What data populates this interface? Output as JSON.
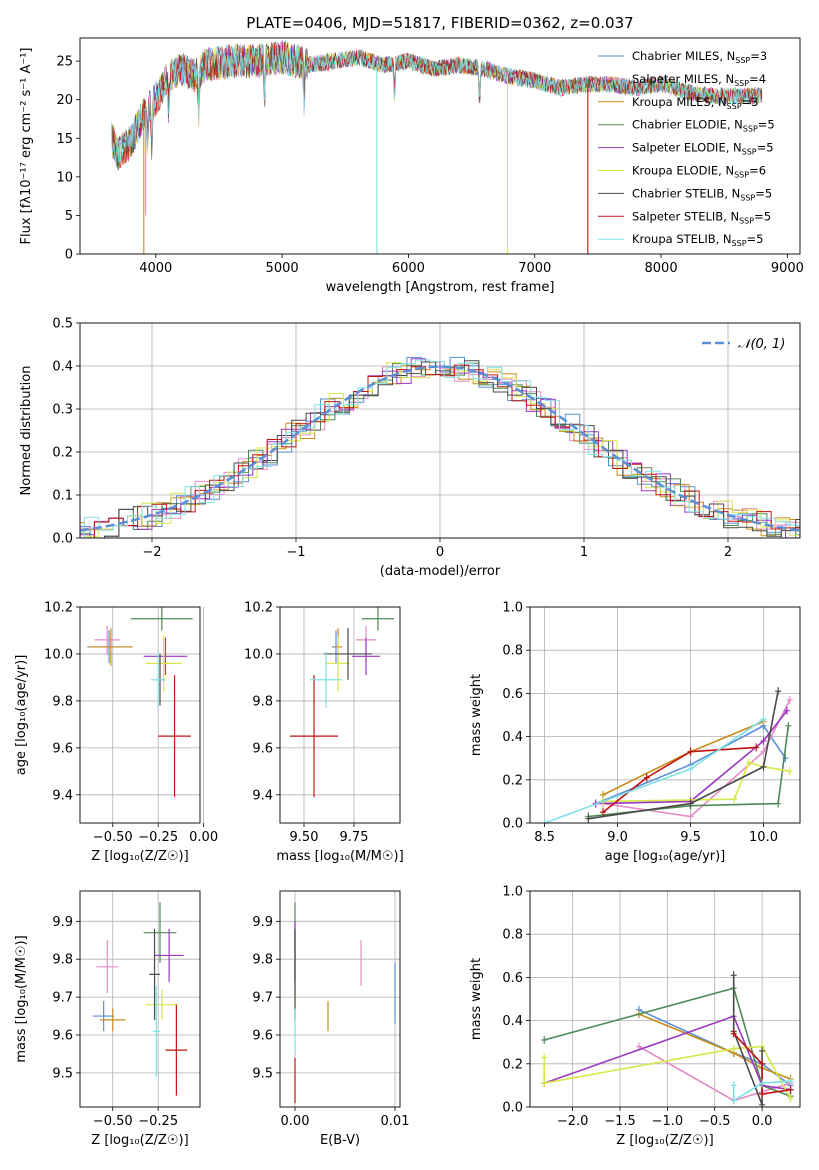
{
  "figure_title": "PLATE=0406, MJD=51817, FIBERID=0362, z=0.037",
  "models": [
    {
      "name": "Chabrier MILES",
      "nssp": "3",
      "color": "#5b8fd6"
    },
    {
      "name": "Salpeter MILES",
      "nssp": "4",
      "color": "#e38cc8"
    },
    {
      "name": "Kroupa MILES",
      "nssp": "3",
      "color": "#c98c1a"
    },
    {
      "name": "Chabrier ELODIE",
      "nssp": "5",
      "color": "#4f8a56"
    },
    {
      "name": "Salpeter ELODIE",
      "nssp": "5",
      "color": "#9b37c0"
    },
    {
      "name": "Kroupa ELODIE",
      "nssp": "6",
      "color": "#d8e84a"
    },
    {
      "name": "Chabrier STELIB",
      "nssp": "5",
      "color": "#4a4a4a"
    },
    {
      "name": "Salpeter STELIB",
      "nssp": "5",
      "color": "#c0140f"
    },
    {
      "name": "Kroupa STELIB",
      "nssp": "5",
      "color": "#7fe0e6"
    }
  ],
  "chart_data": [
    {
      "type": "line",
      "title": "PLATE=0406, MJD=51817, FIBERID=0362, z=0.037",
      "xlabel": "wavelength [Angstrom, rest frame]",
      "ylabel": "Flux [fλ10⁻¹⁷ erg cm⁻² s⁻¹ A⁻¹]",
      "xlim": [
        3400,
        9100
      ],
      "ylim": [
        0,
        28
      ],
      "xticks": [
        "4000",
        "5000",
        "6000",
        "7000",
        "8000",
        "9000"
      ],
      "yticks": [
        "0",
        "5",
        "10",
        "15",
        "20",
        "25"
      ],
      "legend": "top-right",
      "continuum": [
        [
          3650,
          15
        ],
        [
          3700,
          13
        ],
        [
          3800,
          14.5
        ],
        [
          3900,
          18
        ],
        [
          3950,
          19
        ],
        [
          4000,
          20
        ],
        [
          4100,
          23
        ],
        [
          4200,
          24
        ],
        [
          4300,
          23
        ],
        [
          4400,
          24.5
        ],
        [
          4600,
          25
        ],
        [
          4800,
          25
        ],
        [
          5000,
          25.5
        ],
        [
          5200,
          24.5
        ],
        [
          5400,
          25
        ],
        [
          5600,
          25.5
        ],
        [
          5800,
          24.5
        ],
        [
          6000,
          25
        ],
        [
          6200,
          24
        ],
        [
          6400,
          24.5
        ],
        [
          6600,
          24
        ],
        [
          6800,
          23
        ],
        [
          7000,
          22.5
        ],
        [
          7200,
          21.5
        ],
        [
          7400,
          22
        ],
        [
          7600,
          22
        ],
        [
          7800,
          21.5
        ],
        [
          8000,
          22
        ],
        [
          8200,
          21
        ],
        [
          8400,
          20.5
        ],
        [
          8600,
          20.5
        ],
        [
          8800,
          20.5
        ]
      ],
      "lines_x": [
        3934,
        3968,
        4102,
        4340,
        4861,
        5175,
        5890,
        6563
      ],
      "spikes": [
        [
          3905,
          0,
          2
        ],
        [
          3920,
          5,
          1
        ],
        [
          5750,
          0,
          8
        ],
        [
          6785,
          0,
          5
        ],
        [
          7420,
          0,
          7
        ]
      ]
    },
    {
      "type": "histogram",
      "xlabel": "(data-model)/error",
      "ylabel": "Normed distribution",
      "xlim": [
        -2.5,
        2.5
      ],
      "ylim": [
        0,
        0.5
      ],
      "xticks": [
        "−2",
        "−1",
        "0",
        "1",
        "2"
      ],
      "yticks": [
        "0.0",
        "0.1",
        "0.2",
        "0.3",
        "0.4",
        "0.5"
      ],
      "grid": true,
      "legend": "top-right",
      "legend_label": "𝒩(0, 1)",
      "bin_width": 0.1,
      "legend_color": "#5b8fd6",
      "reference_curve": "normal(0,1)"
    },
    {
      "type": "errorbar",
      "xlabel": "Z [log₁₀(Z/Z☉)]",
      "ylabel": "age  [log₁₀(age/yr)]",
      "xlim": [
        -0.68,
        -0.02
      ],
      "ylim": [
        9.28,
        10.2
      ],
      "xticks": [
        "−0.50",
        "−0.25",
        "0.00"
      ],
      "yticks": [
        "9.4",
        "9.6",
        "9.8",
        "10.0",
        "10.2"
      ],
      "points": [
        {
          "x": -0.52,
          "xerr": 0.12,
          "y": 10.03,
          "yerr": 0.07
        },
        {
          "x": -0.53,
          "xerr": 0.07,
          "y": 10.06,
          "yerr": 0.06
        },
        {
          "x": -0.51,
          "xerr": 0.12,
          "y": 10.03,
          "yerr": 0.08
        },
        {
          "x": -0.23,
          "xerr": 0.17,
          "y": 10.15,
          "yerr": 0.05
        },
        {
          "x": -0.21,
          "xerr": 0.12,
          "y": 9.99,
          "yerr": 0.08
        },
        {
          "x": -0.22,
          "xerr": 0.1,
          "y": 9.96,
          "yerr": 0.12
        },
        {
          "x": -0.24,
          "xerr": 0.02,
          "y": 9.89,
          "yerr": 0.11
        },
        {
          "x": -0.16,
          "xerr": 0.09,
          "y": 9.65,
          "yerr": 0.26
        },
        {
          "x": -0.25,
          "xerr": 0.04,
          "y": 9.89,
          "yerr": 0.12
        }
      ]
    },
    {
      "type": "errorbar",
      "xlabel": "mass [log₁₀(M/M☉)]",
      "ylabel": "",
      "xlim": [
        9.38,
        9.98
      ],
      "ylim": [
        9.28,
        10.2
      ],
      "xticks": [
        "9.50",
        "9.75"
      ],
      "yticks": [
        "9.4",
        "9.6",
        "9.8",
        "10.0",
        "10.2"
      ],
      "points": [
        {
          "x": 9.66,
          "xerr": 0.02,
          "y": 10.03,
          "yerr": 0.07
        },
        {
          "x": 9.81,
          "xerr": 0.05,
          "y": 10.06,
          "yerr": 0.06
        },
        {
          "x": 9.67,
          "xerr": 0.02,
          "y": 10.03,
          "yerr": 0.08
        },
        {
          "x": 9.87,
          "xerr": 0.08,
          "y": 10.15,
          "yerr": 0.05
        },
        {
          "x": 9.81,
          "xerr": 0.07,
          "y": 9.99,
          "yerr": 0.08
        },
        {
          "x": 9.67,
          "xerr": 0.06,
          "y": 9.96,
          "yerr": 0.12
        },
        {
          "x": 9.72,
          "xerr": 0.12,
          "y": 10.0,
          "yerr": 0.11
        },
        {
          "x": 9.55,
          "xerr": 0.12,
          "y": 9.65,
          "yerr": 0.26
        },
        {
          "x": 9.61,
          "xerr": 0.08,
          "y": 9.89,
          "yerr": 0.12
        }
      ]
    },
    {
      "type": "line",
      "xlabel": "age  [log₁₀(age/yr)]",
      "ylabel": "mass weight",
      "xlim": [
        8.4,
        10.25
      ],
      "ylim": [
        0,
        1
      ],
      "xticks": [
        "8.5",
        "9.0",
        "9.5",
        "10.0"
      ],
      "yticks": [
        "0.0",
        "0.2",
        "0.4",
        "0.6",
        "0.8",
        "1.0"
      ],
      "grid": true,
      "series_xy": [
        [
          [
            8.85,
            0.09
          ],
          [
            9.5,
            0.27
          ],
          [
            10.0,
            0.45
          ],
          [
            10.15,
            0.3
          ]
        ],
        [
          [
            8.9,
            0.09
          ],
          [
            9.5,
            0.03
          ],
          [
            10.0,
            0.33
          ],
          [
            10.18,
            0.57
          ]
        ],
        [
          [
            8.9,
            0.13
          ],
          [
            9.5,
            0.33
          ],
          [
            10.0,
            0.47
          ]
        ],
        [
          [
            8.8,
            0.03
          ],
          [
            9.5,
            0.08
          ],
          [
            10.1,
            0.09
          ],
          [
            10.17,
            0.45
          ]
        ],
        [
          [
            8.85,
            0.09
          ],
          [
            9.5,
            0.1
          ],
          [
            10.0,
            0.38
          ],
          [
            10.16,
            0.52
          ]
        ],
        [
          [
            8.9,
            0.1
          ],
          [
            9.8,
            0.11
          ],
          [
            9.9,
            0.28
          ],
          [
            10.0,
            0.26
          ],
          [
            10.18,
            0.24
          ]
        ],
        [
          [
            8.8,
            0.02
          ],
          [
            9.5,
            0.09
          ],
          [
            10.0,
            0.26
          ],
          [
            10.1,
            0.61
          ]
        ],
        [
          [
            8.9,
            0.05
          ],
          [
            9.2,
            0.21
          ],
          [
            9.5,
            0.33
          ],
          [
            9.95,
            0.35
          ]
        ],
        [
          [
            8.5,
            0.0
          ],
          [
            9.5,
            0.25
          ],
          [
            10.0,
            0.48
          ]
        ]
      ]
    },
    {
      "type": "errorbar",
      "xlabel": "Z [log₁₀(Z/Z☉)]",
      "ylabel": "mass [log₁₀(M/M☉)]",
      "xlim": [
        -0.68,
        -0.02
      ],
      "ylim": [
        9.41,
        9.98
      ],
      "xticks": [
        "−0.50",
        "−0.25"
      ],
      "yticks": [
        "9.5",
        "9.6",
        "9.7",
        "9.8",
        "9.9"
      ],
      "points": [
        {
          "x": -0.55,
          "xerr": 0.06,
          "y": 9.65,
          "yerr": 0.04
        },
        {
          "x": -0.53,
          "xerr": 0.06,
          "y": 9.78,
          "yerr": 0.07
        },
        {
          "x": -0.5,
          "xerr": 0.07,
          "y": 9.64,
          "yerr": 0.03
        },
        {
          "x": -0.24,
          "xerr": 0.09,
          "y": 9.87,
          "yerr": 0.08
        },
        {
          "x": -0.19,
          "xerr": 0.08,
          "y": 9.81,
          "yerr": 0.07
        },
        {
          "x": -0.23,
          "xerr": 0.09,
          "y": 9.68,
          "yerr": 0.04
        },
        {
          "x": -0.27,
          "xerr": 0.03,
          "y": 9.76,
          "yerr": 0.12
        },
        {
          "x": -0.15,
          "xerr": 0.06,
          "y": 9.56,
          "yerr": 0.12
        },
        {
          "x": -0.26,
          "xerr": 0.02,
          "y": 9.61,
          "yerr": 0.12
        }
      ]
    },
    {
      "type": "errorbar",
      "xlabel": "E(B-V)",
      "ylabel": "",
      "xlim": [
        -0.0015,
        0.0105
      ],
      "ylim": [
        9.41,
        9.98
      ],
      "xticks": [
        "0.00",
        "0.01"
      ],
      "yticks": [
        "9.5",
        "9.6",
        "9.7",
        "9.8",
        "9.9"
      ],
      "points": [
        {
          "x": 0.01,
          "xerr": 0,
          "y": 9.71,
          "yerr": 0.08
        },
        {
          "x": 0.0066,
          "xerr": 0,
          "y": 9.79,
          "yerr": 0.06
        },
        {
          "x": 0.0033,
          "xerr": 0,
          "y": 9.65,
          "yerr": 0.04
        },
        {
          "x": 0.0,
          "xerr": 0,
          "y": 9.83,
          "yerr": 0.12
        },
        {
          "x": 0.0,
          "xerr": 0,
          "y": 9.82,
          "yerr": 0.08
        },
        {
          "x": 0.0,
          "xerr": 0,
          "y": 9.68,
          "yerr": 0.04
        },
        {
          "x": 0.0,
          "xerr": 0,
          "y": 9.76,
          "yerr": 0.12
        },
        {
          "x": 0.0,
          "xerr": 0,
          "y": 9.48,
          "yerr": 0.06
        },
        {
          "x": 0.0,
          "xerr": 0,
          "y": 9.61,
          "yerr": 0.06
        }
      ]
    },
    {
      "type": "line",
      "xlabel": "Z [log₁₀(Z/Z☉)]",
      "ylabel": "mass weight",
      "xlim": [
        -2.45,
        0.4
      ],
      "ylim": [
        0,
        1
      ],
      "xticks": [
        "−2.0",
        "−1.5",
        "−1.0",
        "−0.5",
        "0.0"
      ],
      "yticks": [
        "0.0",
        "0.2",
        "0.4",
        "0.6",
        "0.8",
        "1.0"
      ],
      "grid": true,
      "series_xy": [
        [
          [
            -1.3,
            0.45
          ],
          [
            -0.3,
            0.25
          ],
          [
            0.0,
            0.2
          ],
          [
            0.3,
            0.1
          ]
        ],
        [
          [
            -1.3,
            0.28
          ],
          [
            -0.3,
            0.03
          ],
          [
            0.3,
            0.11
          ]
        ],
        [
          [
            -1.3,
            0.43
          ],
          [
            -0.3,
            0.25
          ],
          [
            0.0,
            0.18
          ],
          [
            0.3,
            0.13
          ]
        ],
        [
          [
            -2.3,
            0.31
          ],
          [
            -0.3,
            0.55
          ],
          [
            0.0,
            0.1
          ],
          [
            0.3,
            0.05
          ]
        ],
        [
          [
            -2.3,
            0.11
          ],
          [
            -0.3,
            0.42
          ],
          [
            0.0,
            0.1
          ],
          [
            0.3,
            0.08
          ]
        ],
        [
          [
            -2.3,
            0.23
          ],
          [
            -2.3,
            0.11
          ],
          [
            -0.3,
            0.27
          ],
          [
            0.0,
            0.28
          ],
          [
            0.3,
            0.04
          ]
        ],
        [
          [
            -0.3,
            0.61
          ],
          [
            -0.3,
            0.35
          ],
          [
            0.0,
            0.01
          ],
          [
            0.0,
            0.26
          ]
        ],
        [
          [
            -0.3,
            0.34
          ],
          [
            0.0,
            0.2
          ],
          [
            0.0,
            0.06
          ],
          [
            0.3,
            0.08
          ]
        ],
        [
          [
            -0.3,
            0.1
          ],
          [
            -0.3,
            0.03
          ],
          [
            0.0,
            0.11
          ],
          [
            0.3,
            0.12
          ]
        ]
      ]
    }
  ]
}
